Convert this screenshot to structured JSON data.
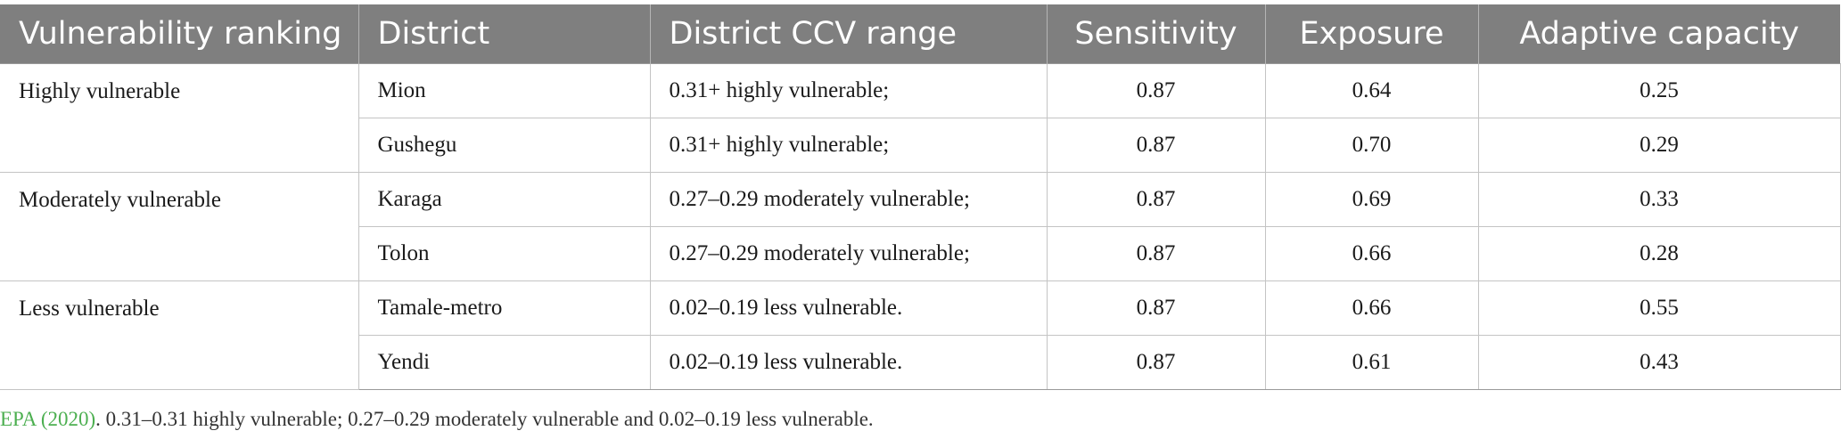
{
  "table": {
    "headers": [
      "Vulnerability ranking",
      "District",
      "District CCV range",
      "Sensitivity",
      "Exposure",
      "Adaptive capacity"
    ],
    "groups": [
      {
        "ranking": "Highly vulnerable",
        "rows": [
          {
            "district": "Mion",
            "ccv_range": "0.31+ highly vulnerable;",
            "sensitivity": "0.87",
            "exposure": "0.64",
            "adaptive_capacity": "0.25"
          },
          {
            "district": "Gushegu",
            "ccv_range": "0.31+ highly vulnerable;",
            "sensitivity": "0.87",
            "exposure": "0.70",
            "adaptive_capacity": "0.29"
          }
        ]
      },
      {
        "ranking": "Moderately vulnerable",
        "rows": [
          {
            "district": "Karaga",
            "ccv_range": "0.27–0.29 moderately vulnerable;",
            "sensitivity": "0.87",
            "exposure": "0.69",
            "adaptive_capacity": "0.33"
          },
          {
            "district": "Tolon",
            "ccv_range": "0.27–0.29 moderately vulnerable;",
            "sensitivity": "0.87",
            "exposure": "0.66",
            "adaptive_capacity": "0.28"
          }
        ]
      },
      {
        "ranking": "Less vulnerable",
        "rows": [
          {
            "district": "Tamale-metro",
            "ccv_range": "0.02–0.19 less vulnerable.",
            "sensitivity": "0.87",
            "exposure": "0.66",
            "adaptive_capacity": "0.55"
          },
          {
            "district": "Yendi",
            "ccv_range": "0.02–0.19 less vulnerable.",
            "sensitivity": "0.87",
            "exposure": "0.61",
            "adaptive_capacity": "0.43"
          }
        ]
      }
    ]
  },
  "footnote": {
    "citation": "EPA (2020)",
    "text": ". 0.31–0.31 highly vulnerable; 0.27–0.29 moderately vulnerable and 0.02–0.19 less vulnerable."
  },
  "colors": {
    "header_background": "#7f7f7f",
    "header_text": "#ffffff",
    "citation_link": "#4caf50"
  }
}
